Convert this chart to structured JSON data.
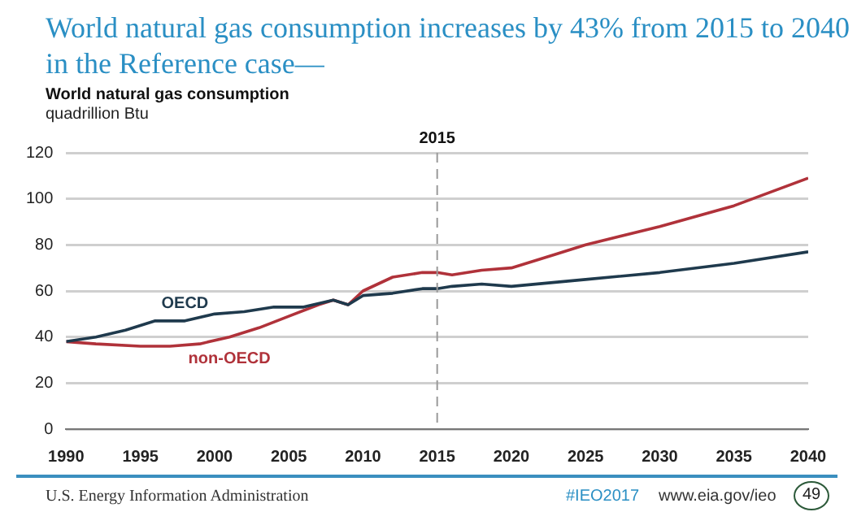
{
  "chart_data": {
    "type": "line",
    "title": "World natural gas consumption increases by 43% from 2015 to 2040 in the Reference case—",
    "subtitle": "World natural gas consumption",
    "ylabel": "quadrillion Btu",
    "series": [
      {
        "name": "OECD",
        "color": "#1f3a4d",
        "x": [
          1990,
          1992,
          1994,
          1996,
          1998,
          2000,
          2002,
          2004,
          2006,
          2008,
          2009,
          2010,
          2012,
          2014,
          2015,
          2016,
          2018,
          2020,
          2025,
          2030,
          2035,
          2040
        ],
        "values": [
          38,
          40,
          43,
          47,
          47,
          50,
          51,
          53,
          53,
          56,
          54,
          58,
          59,
          61,
          61,
          62,
          63,
          62,
          65,
          68,
          72,
          77
        ]
      },
      {
        "name": "non-OECD",
        "color": "#b0323a",
        "x": [
          1990,
          1992,
          1995,
          1997,
          1999,
          2001,
          2003,
          2005,
          2007,
          2008,
          2009,
          2010,
          2012,
          2014,
          2015,
          2016,
          2018,
          2020,
          2023,
          2025,
          2030,
          2035,
          2040
        ],
        "values": [
          38,
          37,
          36,
          36,
          37,
          40,
          44,
          49,
          54,
          56,
          54,
          60,
          66,
          68,
          68,
          67,
          69,
          70,
          76,
          80,
          88,
          97,
          109
        ]
      }
    ],
    "xlim": [
      1990,
      2040
    ],
    "xticks": [
      1990,
      1995,
      2000,
      2005,
      2010,
      2015,
      2020,
      2025,
      2030,
      2035,
      2040
    ],
    "ylim": [
      0,
      120
    ],
    "yticks": [
      0,
      20,
      40,
      60,
      80,
      100,
      120
    ],
    "grid": "y",
    "legend": false,
    "marker": "none",
    "line_style": "solid",
    "ref_lines": [
      {
        "axis": "x",
        "value": 2015,
        "label": "2015",
        "color": "#999999",
        "line_style": "dashed"
      }
    ],
    "annotations": [
      "U.S. Energy Information Administration",
      "#IEO2017",
      "www.eia.gov/ieo",
      "49"
    ]
  }
}
